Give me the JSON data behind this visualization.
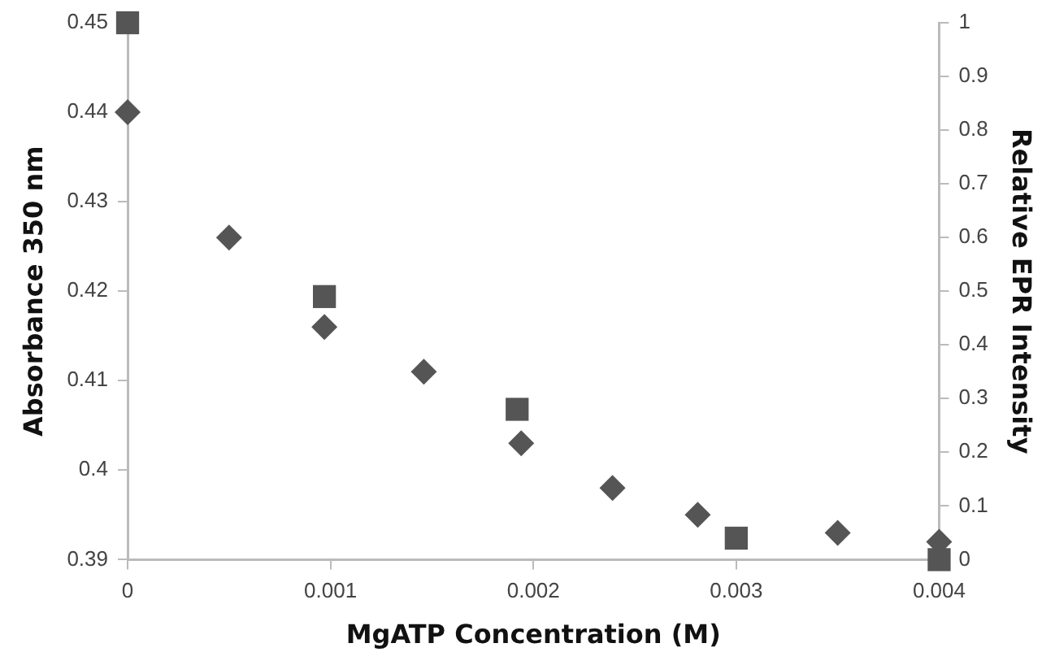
{
  "chart_data": {
    "type": "scatter",
    "xlabel": "MgATP Concentration (M)",
    "ylabel": "Absorbance 350 nm",
    "y2label": "Relative EPR Intensity",
    "series": [
      {
        "color": "#555555",
        "marker": "diamond",
        "x": [
          0,
          0.0005,
          0.00097,
          0.00146,
          0.00194,
          0.00239,
          0.00281,
          0.0035,
          0.004
        ],
        "values": [
          0.44,
          0.426,
          0.416,
          0.411,
          0.403,
          0.398,
          0.395,
          0.393,
          0.392
        ]
      },
      {
        "color": "#555555",
        "marker": "square",
        "axis": "y2",
        "x": [
          0,
          0.00097,
          0.00192,
          0.003,
          0.004
        ],
        "values": [
          1,
          0.49,
          0.28,
          0.04,
          0
        ]
      }
    ],
    "xlim": [
      0,
      0.004
    ],
    "xticks": [
      0,
      0.001,
      0.002,
      0.003,
      0.004
    ],
    "ylim": [
      0.39,
      0.45
    ],
    "yticks": [
      0.39,
      0.4,
      0.41,
      0.42,
      0.43,
      0.44,
      0.45
    ],
    "y2lim": [
      0,
      1
    ],
    "y2ticks": [
      0,
      0.1,
      0.2,
      0.3,
      0.4,
      0.5,
      0.6,
      0.7,
      0.8,
      0.9,
      1
    ],
    "grid": false,
    "legend": false
  }
}
